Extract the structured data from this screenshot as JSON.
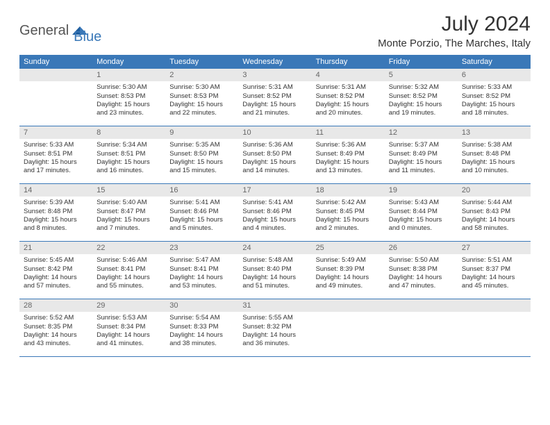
{
  "logo": {
    "part1": "General",
    "part2": "Blue"
  },
  "title": "July 2024",
  "location": "Monte Porzio, The Marches, Italy",
  "colors": {
    "header_bg": "#3a78b8",
    "header_text": "#ffffff",
    "daynum_bg": "#e8e8e8",
    "daynum_text": "#666666",
    "body_text": "#333333",
    "rule": "#3a78b8"
  },
  "weekdays": [
    "Sunday",
    "Monday",
    "Tuesday",
    "Wednesday",
    "Thursday",
    "Friday",
    "Saturday"
  ],
  "weeks": [
    [
      {
        "n": "",
        "sr": "",
        "ss": "",
        "dl": ""
      },
      {
        "n": "1",
        "sr": "Sunrise: 5:30 AM",
        "ss": "Sunset: 8:53 PM",
        "dl": "Daylight: 15 hours and 23 minutes."
      },
      {
        "n": "2",
        "sr": "Sunrise: 5:30 AM",
        "ss": "Sunset: 8:53 PM",
        "dl": "Daylight: 15 hours and 22 minutes."
      },
      {
        "n": "3",
        "sr": "Sunrise: 5:31 AM",
        "ss": "Sunset: 8:52 PM",
        "dl": "Daylight: 15 hours and 21 minutes."
      },
      {
        "n": "4",
        "sr": "Sunrise: 5:31 AM",
        "ss": "Sunset: 8:52 PM",
        "dl": "Daylight: 15 hours and 20 minutes."
      },
      {
        "n": "5",
        "sr": "Sunrise: 5:32 AM",
        "ss": "Sunset: 8:52 PM",
        "dl": "Daylight: 15 hours and 19 minutes."
      },
      {
        "n": "6",
        "sr": "Sunrise: 5:33 AM",
        "ss": "Sunset: 8:52 PM",
        "dl": "Daylight: 15 hours and 18 minutes."
      }
    ],
    [
      {
        "n": "7",
        "sr": "Sunrise: 5:33 AM",
        "ss": "Sunset: 8:51 PM",
        "dl": "Daylight: 15 hours and 17 minutes."
      },
      {
        "n": "8",
        "sr": "Sunrise: 5:34 AM",
        "ss": "Sunset: 8:51 PM",
        "dl": "Daylight: 15 hours and 16 minutes."
      },
      {
        "n": "9",
        "sr": "Sunrise: 5:35 AM",
        "ss": "Sunset: 8:50 PM",
        "dl": "Daylight: 15 hours and 15 minutes."
      },
      {
        "n": "10",
        "sr": "Sunrise: 5:36 AM",
        "ss": "Sunset: 8:50 PM",
        "dl": "Daylight: 15 hours and 14 minutes."
      },
      {
        "n": "11",
        "sr": "Sunrise: 5:36 AM",
        "ss": "Sunset: 8:49 PM",
        "dl": "Daylight: 15 hours and 13 minutes."
      },
      {
        "n": "12",
        "sr": "Sunrise: 5:37 AM",
        "ss": "Sunset: 8:49 PM",
        "dl": "Daylight: 15 hours and 11 minutes."
      },
      {
        "n": "13",
        "sr": "Sunrise: 5:38 AM",
        "ss": "Sunset: 8:48 PM",
        "dl": "Daylight: 15 hours and 10 minutes."
      }
    ],
    [
      {
        "n": "14",
        "sr": "Sunrise: 5:39 AM",
        "ss": "Sunset: 8:48 PM",
        "dl": "Daylight: 15 hours and 8 minutes."
      },
      {
        "n": "15",
        "sr": "Sunrise: 5:40 AM",
        "ss": "Sunset: 8:47 PM",
        "dl": "Daylight: 15 hours and 7 minutes."
      },
      {
        "n": "16",
        "sr": "Sunrise: 5:41 AM",
        "ss": "Sunset: 8:46 PM",
        "dl": "Daylight: 15 hours and 5 minutes."
      },
      {
        "n": "17",
        "sr": "Sunrise: 5:41 AM",
        "ss": "Sunset: 8:46 PM",
        "dl": "Daylight: 15 hours and 4 minutes."
      },
      {
        "n": "18",
        "sr": "Sunrise: 5:42 AM",
        "ss": "Sunset: 8:45 PM",
        "dl": "Daylight: 15 hours and 2 minutes."
      },
      {
        "n": "19",
        "sr": "Sunrise: 5:43 AM",
        "ss": "Sunset: 8:44 PM",
        "dl": "Daylight: 15 hours and 0 minutes."
      },
      {
        "n": "20",
        "sr": "Sunrise: 5:44 AM",
        "ss": "Sunset: 8:43 PM",
        "dl": "Daylight: 14 hours and 58 minutes."
      }
    ],
    [
      {
        "n": "21",
        "sr": "Sunrise: 5:45 AM",
        "ss": "Sunset: 8:42 PM",
        "dl": "Daylight: 14 hours and 57 minutes."
      },
      {
        "n": "22",
        "sr": "Sunrise: 5:46 AM",
        "ss": "Sunset: 8:41 PM",
        "dl": "Daylight: 14 hours and 55 minutes."
      },
      {
        "n": "23",
        "sr": "Sunrise: 5:47 AM",
        "ss": "Sunset: 8:41 PM",
        "dl": "Daylight: 14 hours and 53 minutes."
      },
      {
        "n": "24",
        "sr": "Sunrise: 5:48 AM",
        "ss": "Sunset: 8:40 PM",
        "dl": "Daylight: 14 hours and 51 minutes."
      },
      {
        "n": "25",
        "sr": "Sunrise: 5:49 AM",
        "ss": "Sunset: 8:39 PM",
        "dl": "Daylight: 14 hours and 49 minutes."
      },
      {
        "n": "26",
        "sr": "Sunrise: 5:50 AM",
        "ss": "Sunset: 8:38 PM",
        "dl": "Daylight: 14 hours and 47 minutes."
      },
      {
        "n": "27",
        "sr": "Sunrise: 5:51 AM",
        "ss": "Sunset: 8:37 PM",
        "dl": "Daylight: 14 hours and 45 minutes."
      }
    ],
    [
      {
        "n": "28",
        "sr": "Sunrise: 5:52 AM",
        "ss": "Sunset: 8:35 PM",
        "dl": "Daylight: 14 hours and 43 minutes."
      },
      {
        "n": "29",
        "sr": "Sunrise: 5:53 AM",
        "ss": "Sunset: 8:34 PM",
        "dl": "Daylight: 14 hours and 41 minutes."
      },
      {
        "n": "30",
        "sr": "Sunrise: 5:54 AM",
        "ss": "Sunset: 8:33 PM",
        "dl": "Daylight: 14 hours and 38 minutes."
      },
      {
        "n": "31",
        "sr": "Sunrise: 5:55 AM",
        "ss": "Sunset: 8:32 PM",
        "dl": "Daylight: 14 hours and 36 minutes."
      },
      {
        "n": "",
        "sr": "",
        "ss": "",
        "dl": ""
      },
      {
        "n": "",
        "sr": "",
        "ss": "",
        "dl": ""
      },
      {
        "n": "",
        "sr": "",
        "ss": "",
        "dl": ""
      }
    ]
  ]
}
